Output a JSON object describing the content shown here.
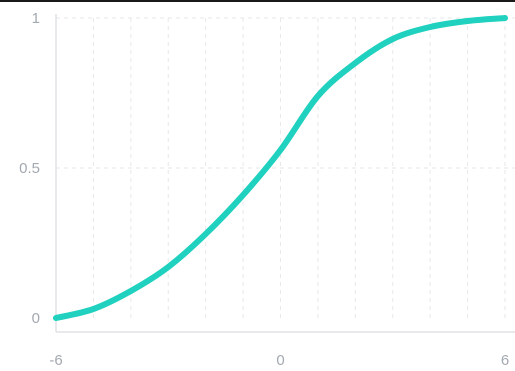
{
  "chart_data": {
    "type": "line",
    "title": "",
    "xlabel": "",
    "ylabel": "",
    "xlim": [
      -6,
      6
    ],
    "ylim": [
      0,
      1
    ],
    "x_ticks": [
      -6,
      0,
      6
    ],
    "x_tick_labels": [
      "-6",
      "0",
      "6"
    ],
    "y_ticks": [
      0,
      0.5,
      1
    ],
    "y_tick_labels": [
      "0",
      "0.5",
      "1"
    ],
    "grid": true,
    "legend": "none",
    "colors": {
      "line": "#1fd1be"
    },
    "series": [
      {
        "x": [
          -6,
          -5,
          -4,
          -3,
          -2,
          -1,
          0,
          1,
          2,
          3,
          4,
          5,
          6
        ],
        "y": [
          0,
          0.03,
          0.09,
          0.17,
          0.28,
          0.41,
          0.56,
          0.74,
          0.85,
          0.93,
          0.97,
          0.99,
          1
        ]
      }
    ]
  }
}
